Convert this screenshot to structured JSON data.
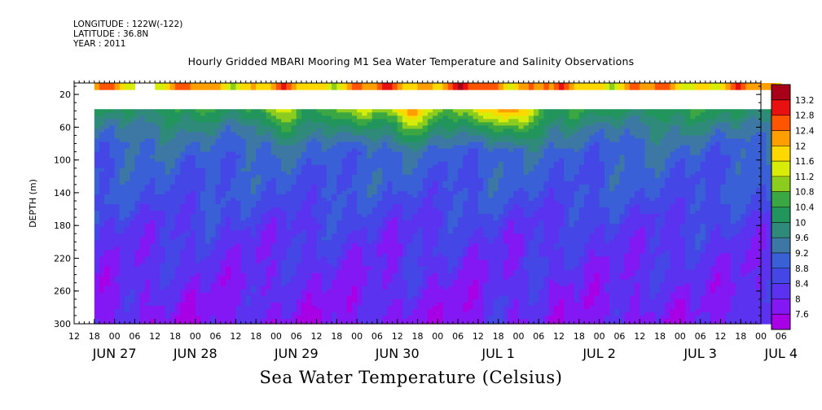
{
  "header": {
    "longitude": "LONGITUDE : 122W(-122)",
    "latitude": "LATITUDE : 36.8N",
    "year": "YEAR : 2011"
  },
  "chart_data": {
    "type": "heatmap",
    "title": "Hourly Gridded MBARI Mooring M1 Sea Water Temperature and Salinity Observations",
    "subtitle": "Sea Water Temperature (Celsius)",
    "ylabel": "DEPTH (m)",
    "xlabel": "",
    "y_ticks": [
      20,
      60,
      100,
      140,
      180,
      220,
      260,
      300
    ],
    "ylim": [
      300,
      6
    ],
    "y_inverted": true,
    "x_range_hours": [
      0,
      204
    ],
    "x_hour_ticks": [
      "12",
      "18",
      "00",
      "06",
      "12",
      "18",
      "00",
      "06",
      "12",
      "18",
      "00",
      "06",
      "12",
      "18",
      "00",
      "06",
      "12",
      "18",
      "00",
      "06",
      "12",
      "18",
      "00",
      "06",
      "12",
      "18",
      "00",
      "06",
      "12",
      "18",
      "00",
      "06",
      "12",
      "18",
      "00",
      "06"
    ],
    "x_date_labels": [
      {
        "label": "JUN 27",
        "hour": 12
      },
      {
        "label": "JUN 28",
        "hour": 36
      },
      {
        "label": "JUN 29",
        "hour": 66
      },
      {
        "label": "JUN 30",
        "hour": 96
      },
      {
        "label": "JUL  1",
        "hour": 126
      },
      {
        "label": "JUL  2",
        "hour": 156
      },
      {
        "label": "JUL  3",
        "hour": 186
      },
      {
        "label": "JUL  4",
        "hour": 210
      }
    ],
    "data_start_hour": 6,
    "data_end_hour": 210,
    "surface_gap_hours": [
      18,
      24
    ],
    "surface_depth_band": [
      6,
      14
    ],
    "no_data_depth_band": [
      14,
      40
    ],
    "colorbar_levels": [
      7.6,
      8,
      8.4,
      8.8,
      9.2,
      9.6,
      10,
      10.4,
      10.8,
      11.2,
      11.6,
      12,
      12.4,
      12.8,
      13.2
    ],
    "colorbar_colors": [
      "#a800e6",
      "#8418f4",
      "#5b32f0",
      "#4446e6",
      "#3a60d8",
      "#3d78a4",
      "#2f8a7a",
      "#22955c",
      "#3aa742",
      "#8ccc1e",
      "#d8ec0a",
      "#ffd800",
      "#ff9e00",
      "#ff5400",
      "#e81010",
      "#a80018"
    ],
    "depth_profile": [
      {
        "depth": 6,
        "temp": 12.4
      },
      {
        "depth": 14,
        "temp": 12.0
      },
      {
        "depth": 40,
        "temp": 10.2
      },
      {
        "depth": 60,
        "temp": 9.6
      },
      {
        "depth": 80,
        "temp": 9.2
      },
      {
        "depth": 100,
        "temp": 9.0
      },
      {
        "depth": 140,
        "temp": 8.8
      },
      {
        "depth": 160,
        "temp": 8.6
      },
      {
        "depth": 180,
        "temp": 8.4
      },
      {
        "depth": 220,
        "temp": 8.2
      },
      {
        "depth": 260,
        "temp": 8.0
      },
      {
        "depth": 300,
        "temp": 7.8
      }
    ],
    "warm_events_hours": [
      60,
      84,
      96,
      102,
      120,
      128,
      132
    ],
    "deep_warm_events_hours": [
      126,
      138,
      186,
      204
    ]
  }
}
